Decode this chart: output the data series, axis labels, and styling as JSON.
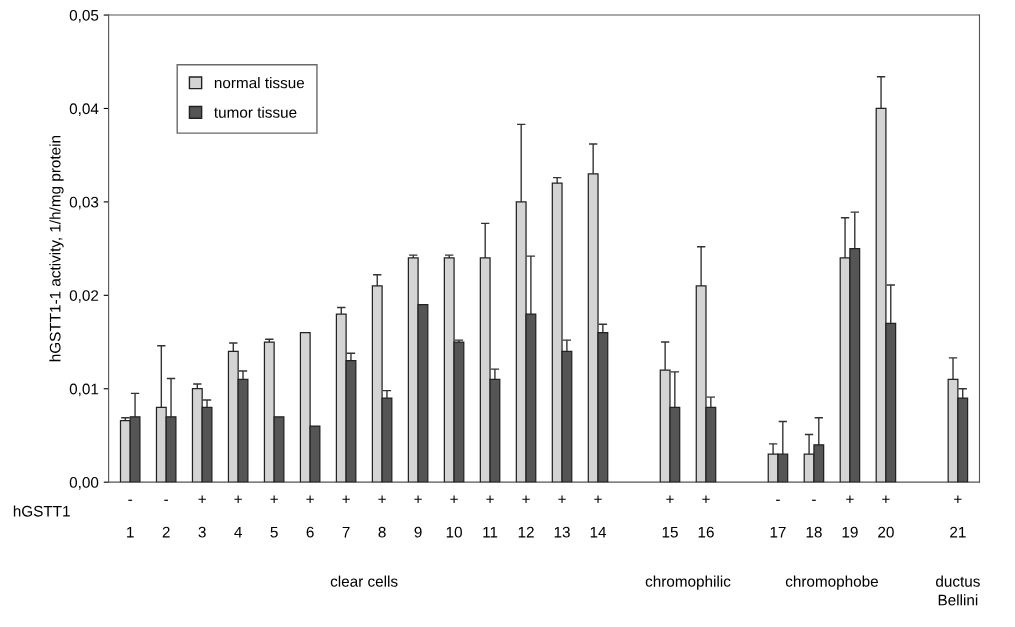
{
  "chart_data": {
    "type": "bar",
    "ylabel": "hGSTT1-1 activity, 1/h/mg protein",
    "categories": [
      "-\n1",
      "-\n2",
      "+\n3",
      "+\n4",
      "+\n5",
      "+\n6",
      "+\n7",
      "+\n8",
      "+\n9",
      "+\n10",
      "+\n11",
      "+\n12",
      "+\n13",
      "+\n14",
      null,
      "+\n15",
      "+\n16",
      null,
      "-\n17",
      "-\n18",
      "+\n19",
      "+\n20",
      null,
      "+\n21"
    ],
    "series": [
      {
        "name": "normal tissue",
        "color": "#d4d4d4",
        "values": [
          0.0066,
          0.008,
          0.01,
          0.014,
          0.015,
          0.016,
          0.018,
          0.021,
          0.024,
          0.024,
          0.024,
          0.03,
          0.032,
          0.033,
          null,
          0.012,
          0.021,
          null,
          0.003,
          0.003,
          0.024,
          0.04,
          null,
          0.011
        ],
        "errors": [
          0.0003,
          0.0066,
          0.0005,
          0.0009,
          0.0003,
          null,
          0.0007,
          0.0012,
          0.0003,
          0.0003,
          0.0037,
          0.0083,
          0.0006,
          0.0032,
          null,
          0.003,
          0.0042,
          null,
          0.0011,
          0.0021,
          0.0043,
          0.0034,
          null,
          0.0023
        ]
      },
      {
        "name": "tumor tissue",
        "color": "#555555",
        "values": [
          0.007,
          0.007,
          0.008,
          0.011,
          0.007,
          0.006,
          0.013,
          0.009,
          0.019,
          0.015,
          0.011,
          0.018,
          0.014,
          0.016,
          null,
          0.008,
          0.008,
          null,
          0.003,
          0.004,
          0.025,
          0.017,
          null,
          0.009
        ],
        "errors": [
          0.0025,
          0.0041,
          0.0008,
          0.0009,
          null,
          null,
          0.0008,
          0.0008,
          null,
          0.0002,
          0.0011,
          0.0062,
          0.0012,
          0.0009,
          null,
          0.0038,
          0.0011,
          null,
          0.0035,
          0.0029,
          0.0039,
          0.0041,
          null,
          0.001
        ]
      }
    ],
    "ylim": [
      0,
      0.05
    ],
    "yticks": [
      {
        "value": 0,
        "label": "0,00"
      },
      {
        "value": 0.01,
        "label": "0,01"
      },
      {
        "value": 0.02,
        "label": "0,02"
      },
      {
        "value": 0.03,
        "label": "0,03"
      },
      {
        "value": 0.04,
        "label": "0,04"
      },
      {
        "value": 0.05,
        "label": "0,05"
      }
    ],
    "grid": false,
    "legend": "top left",
    "annotations": [
      "hGSTT1",
      "clear cells",
      "chromophilic",
      "chromophobe",
      "ductus\nBellini"
    ]
  }
}
